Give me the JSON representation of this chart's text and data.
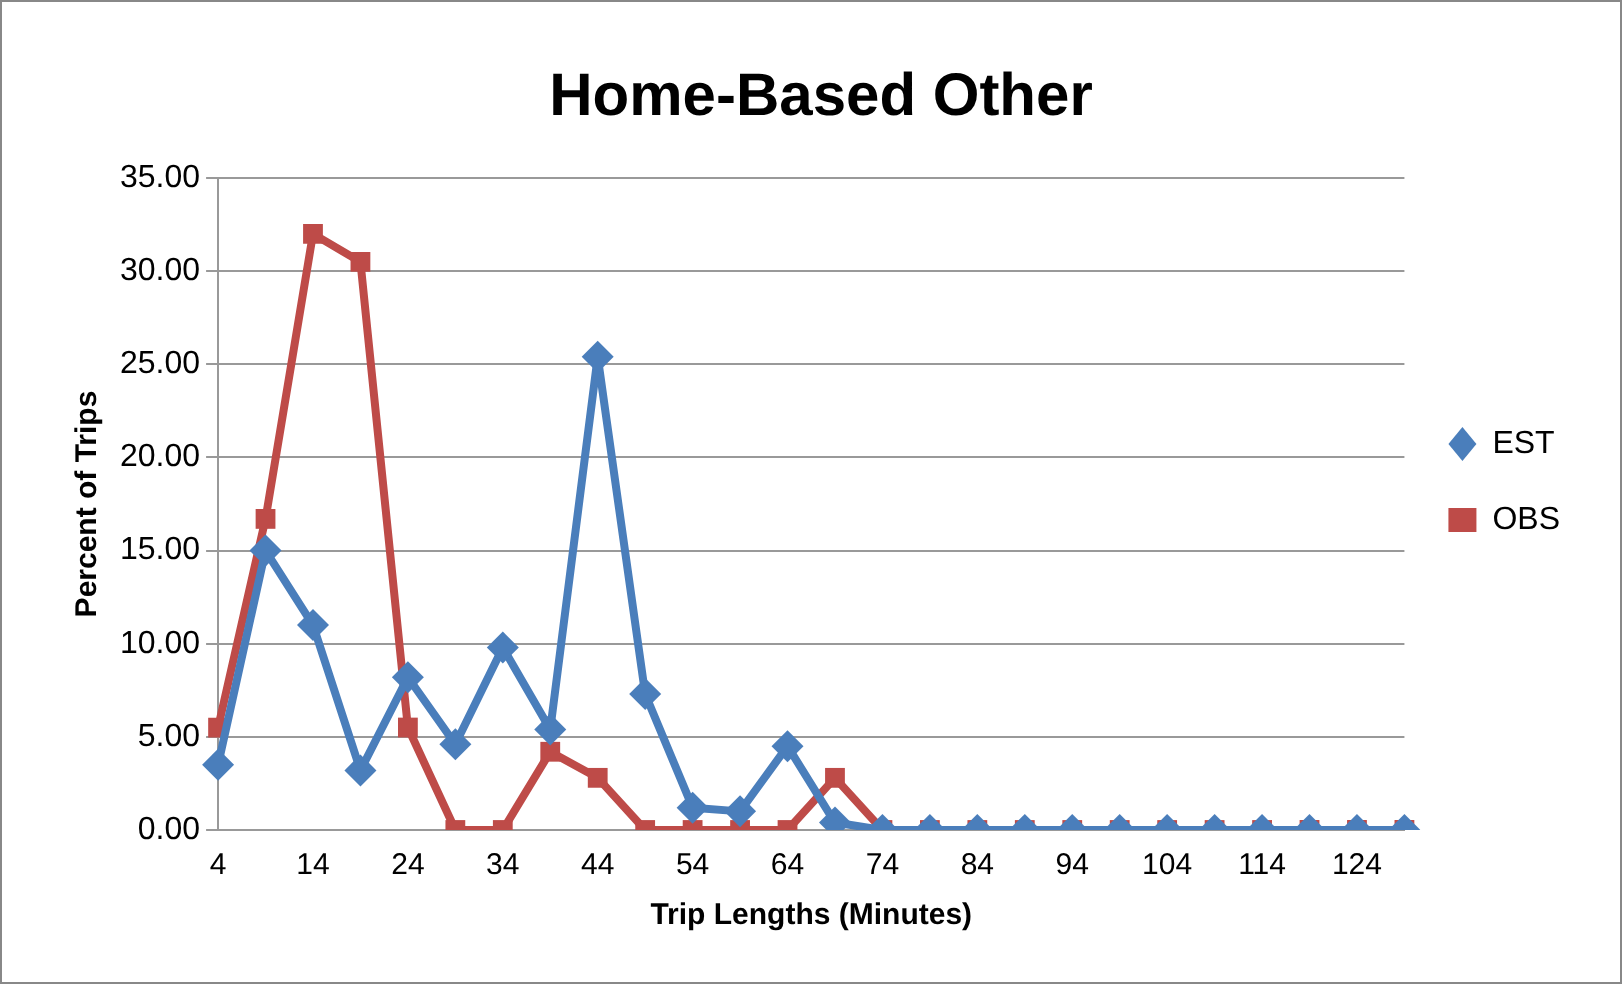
{
  "chart_data": {
    "type": "line",
    "title": "Home-Based Other",
    "xlabel": "Trip Lengths (Minutes)",
    "ylabel": "Percent of Trips",
    "categories": [
      "4",
      null,
      "14",
      null,
      "24",
      null,
      "34",
      null,
      "44",
      null,
      "54",
      null,
      "64",
      null,
      "74",
      null,
      "84",
      null,
      "94",
      null,
      "104",
      null,
      "114",
      null,
      "124",
      null
    ],
    "series": [
      {
        "name": "EST",
        "color": "#4a7ebb",
        "marker": "diamond",
        "values": [
          3.5,
          15.0,
          11.0,
          3.2,
          8.2,
          4.6,
          9.8,
          5.4,
          25.4,
          7.3,
          1.2,
          1.0,
          4.5,
          0.4,
          0,
          0,
          0,
          0,
          0,
          0,
          0,
          0,
          0,
          0,
          0,
          0
        ]
      },
      {
        "name": "OBS",
        "color": "#be4b48",
        "marker": "square",
        "values": [
          5.5,
          16.7,
          32.0,
          30.5,
          5.5,
          0,
          0,
          4.2,
          2.8,
          0,
          0,
          0,
          0,
          2.8,
          0,
          0,
          0,
          0,
          0,
          0,
          0,
          0,
          0,
          0,
          0,
          0
        ]
      }
    ],
    "ylim": [
      0,
      35
    ],
    "yticks": [
      {
        "value": 0,
        "label": "0.00"
      },
      {
        "value": 5,
        "label": "5.00"
      },
      {
        "value": 10,
        "label": "10.00"
      },
      {
        "value": 15,
        "label": "15.00"
      },
      {
        "value": 20,
        "label": "20.00"
      },
      {
        "value": 25,
        "label": "25.00"
      },
      {
        "value": 30,
        "label": "30.00"
      },
      {
        "value": 35,
        "label": "35.00"
      }
    ],
    "grid": "y",
    "legend": "right"
  }
}
